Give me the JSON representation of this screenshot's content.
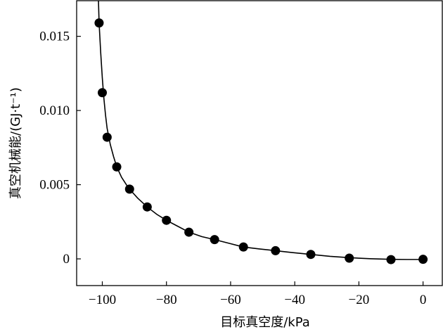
{
  "chart_data": {
    "type": "scatter",
    "title": "",
    "xlabel": "目标真空度/kPa",
    "ylabel": "真空机械能/(GJ·t⁻¹)",
    "xlim": [
      -108,
      6
    ],
    "ylim": [
      -0.0018,
      0.0174
    ],
    "x_ticks": [
      -100,
      -80,
      -60,
      -40,
      -20,
      0
    ],
    "x_tick_labels": [
      "−100",
      "−80",
      "−60",
      "−40",
      "−20",
      "0"
    ],
    "y_ticks": [
      0,
      0.005,
      0.01,
      0.015
    ],
    "y_tick_labels": [
      "0",
      "0.005",
      "0.010",
      "0.015"
    ],
    "grid": false,
    "legend": "none",
    "series": [
      {
        "marker": "filled-circle",
        "x": [
          -101,
          -100,
          -98.5,
          -95.5,
          -91.5,
          -86,
          -80,
          -73,
          -65,
          -56,
          -46,
          -35,
          -23,
          -10,
          0
        ],
        "y": [
          0.0159,
          0.0112,
          0.0082,
          0.0062,
          0.0047,
          0.0035,
          0.0026,
          0.0018,
          0.0013,
          0.0008,
          0.00055,
          0.0003,
          5e-05,
          -5e-05,
          -3e-05
        ]
      }
    ],
    "fit_curve": {
      "style": "solid",
      "x": [
        -101.2,
        -101,
        -100.5,
        -100,
        -99.5,
        -99,
        -98.5,
        -97.5,
        -96.5,
        -95.5,
        -94,
        -92.5,
        -91.5,
        -89,
        -86,
        -83,
        -80,
        -76.5,
        -73,
        -69,
        -65,
        -60.5,
        -56,
        -51,
        -46,
        -40.5,
        -35,
        -29,
        -23,
        -16.5,
        -10,
        -5,
        0
      ],
      "y": [
        0.0174,
        0.0159,
        0.0139,
        0.0122,
        0.0108,
        0.0097,
        0.0088,
        0.0077,
        0.0069,
        0.0062,
        0.0055,
        0.005,
        0.0047,
        0.0041,
        0.0035,
        0.003,
        0.0026,
        0.0022,
        0.0018,
        0.0015,
        0.0013,
        0.00105,
        0.0008,
        0.00067,
        0.00055,
        0.00042,
        0.0003,
        0.00017,
        8e-05,
        1e-05,
        -3e-05,
        -4e-05,
        -4e-05
      ]
    }
  }
}
